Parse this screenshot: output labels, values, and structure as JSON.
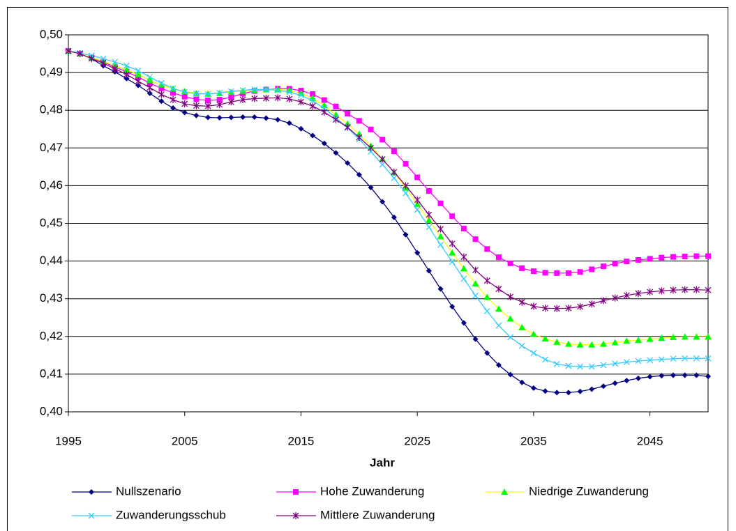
{
  "chart_data": {
    "type": "line",
    "x_label": "Jahr",
    "x": [
      1995,
      1996,
      1997,
      1998,
      1999,
      2000,
      2001,
      2002,
      2003,
      2004,
      2005,
      2006,
      2007,
      2008,
      2009,
      2010,
      2011,
      2012,
      2013,
      2014,
      2015,
      2016,
      2017,
      2018,
      2019,
      2020,
      2021,
      2022,
      2023,
      2024,
      2025,
      2026,
      2027,
      2028,
      2029,
      2030,
      2031,
      2032,
      2033,
      2034,
      2035,
      2036,
      2037,
      2038,
      2039,
      2040,
      2041,
      2042,
      2043,
      2044,
      2045,
      2046,
      2047,
      2048,
      2049,
      2050
    ],
    "xlim": [
      1995,
      2050
    ],
    "xticks": [
      1995,
      2005,
      2015,
      2025,
      2035,
      2045
    ],
    "ylim": [
      0.4,
      0.5
    ],
    "yticks": [
      {
        "value": 0.4,
        "label": "0,40"
      },
      {
        "value": 0.41,
        "label": "0,41"
      },
      {
        "value": 0.42,
        "label": "0,42"
      },
      {
        "value": 0.43,
        "label": "0,43"
      },
      {
        "value": 0.44,
        "label": "0,44"
      },
      {
        "value": 0.45,
        "label": "0,45"
      },
      {
        "value": 0.46,
        "label": "0,46"
      },
      {
        "value": 0.47,
        "label": "0,47"
      },
      {
        "value": 0.48,
        "label": "0,48"
      },
      {
        "value": 0.49,
        "label": "0,49"
      },
      {
        "value": 0.5,
        "label": "0,50"
      }
    ],
    "grid": true,
    "legend": "bottom",
    "series": [
      {
        "name": "Nullszenario",
        "color": "#000080",
        "marker": "diamond",
        "marker_color": "#000080",
        "values": [
          0.4957,
          0.495,
          0.4937,
          0.4918,
          0.4902,
          0.4884,
          0.4866,
          0.4845,
          0.4824,
          0.4806,
          0.4794,
          0.4786,
          0.4781,
          0.478,
          0.4781,
          0.4782,
          0.4782,
          0.4779,
          0.4775,
          0.4766,
          0.4751,
          0.4733,
          0.4712,
          0.4687,
          0.466,
          0.4629,
          0.4595,
          0.4557,
          0.4516,
          0.447,
          0.4422,
          0.4374,
          0.4326,
          0.4279,
          0.4236,
          0.4193,
          0.4156,
          0.4124,
          0.4099,
          0.4078,
          0.4063,
          0.4055,
          0.4051,
          0.4051,
          0.4054,
          0.406,
          0.4068,
          0.4076,
          0.4083,
          0.4089,
          0.4093,
          0.4096,
          0.4097,
          0.4097,
          0.4097,
          0.4094
        ]
      },
      {
        "name": "Hohe Zuwanderung",
        "color": "#ff00ff",
        "marker": "square",
        "marker_color": "#ff00ff",
        "values": [
          0.4957,
          0.495,
          0.494,
          0.4928,
          0.4915,
          0.4902,
          0.4888,
          0.4872,
          0.4858,
          0.4846,
          0.4836,
          0.4829,
          0.4826,
          0.4828,
          0.4835,
          0.4844,
          0.4851,
          0.4855,
          0.4857,
          0.4857,
          0.4852,
          0.4843,
          0.4827,
          0.481,
          0.4791,
          0.4772,
          0.4749,
          0.4722,
          0.4691,
          0.4658,
          0.4622,
          0.4586,
          0.4553,
          0.4519,
          0.4486,
          0.4458,
          0.4432,
          0.441,
          0.4394,
          0.4381,
          0.4373,
          0.4369,
          0.4368,
          0.4368,
          0.4371,
          0.4378,
          0.4386,
          0.4393,
          0.4399,
          0.4403,
          0.4406,
          0.4409,
          0.4411,
          0.4412,
          0.4413,
          0.4413
        ]
      },
      {
        "name": "Niedrige Zuwanderung",
        "color": "#ffff00",
        "marker": "triangle",
        "marker_color": "#00ff00",
        "values": [
          0.4957,
          0.495,
          0.494,
          0.493,
          0.4918,
          0.4907,
          0.4895,
          0.488,
          0.4868,
          0.4857,
          0.485,
          0.4845,
          0.4843,
          0.4845,
          0.4848,
          0.4851,
          0.4853,
          0.4855,
          0.4855,
          0.4853,
          0.4845,
          0.4832,
          0.4813,
          0.4788,
          0.4764,
          0.4737,
          0.4705,
          0.4671,
          0.4635,
          0.4594,
          0.4551,
          0.4508,
          0.4465,
          0.4422,
          0.438,
          0.434,
          0.4304,
          0.4273,
          0.4247,
          0.4224,
          0.4206,
          0.4194,
          0.4185,
          0.418,
          0.4178,
          0.4178,
          0.418,
          0.4184,
          0.4188,
          0.419,
          0.4193,
          0.4196,
          0.4198,
          0.4199,
          0.4199,
          0.4199
        ]
      },
      {
        "name": "Zuwanderungsschub",
        "color": "#33ccff",
        "marker": "x",
        "marker_color": "#33ccff",
        "values": [
          0.4957,
          0.4952,
          0.4945,
          0.4937,
          0.4928,
          0.4918,
          0.4905,
          0.4888,
          0.4872,
          0.4858,
          0.4848,
          0.4844,
          0.4843,
          0.4846,
          0.485,
          0.4853,
          0.4855,
          0.4855,
          0.4853,
          0.4848,
          0.484,
          0.4825,
          0.4805,
          0.478,
          0.4753,
          0.4723,
          0.469,
          0.4656,
          0.462,
          0.458,
          0.4536,
          0.449,
          0.4443,
          0.4398,
          0.4353,
          0.4308,
          0.4267,
          0.4229,
          0.4198,
          0.4175,
          0.4156,
          0.4139,
          0.4127,
          0.4122,
          0.412,
          0.412,
          0.4124,
          0.4128,
          0.4132,
          0.4135,
          0.4137,
          0.4139,
          0.4141,
          0.4142,
          0.4142,
          0.4142
        ]
      },
      {
        "name": "Mittlere Zuwanderung",
        "color": "#800080",
        "marker": "asterisk",
        "marker_color": "#800080",
        "values": [
          0.4957,
          0.495,
          0.4937,
          0.4925,
          0.491,
          0.4895,
          0.4877,
          0.486,
          0.4842,
          0.4828,
          0.4817,
          0.4812,
          0.4811,
          0.4815,
          0.4822,
          0.4828,
          0.4831,
          0.4832,
          0.4833,
          0.483,
          0.4822,
          0.4811,
          0.4795,
          0.4775,
          0.4755,
          0.4728,
          0.47,
          0.467,
          0.4636,
          0.46,
          0.4562,
          0.4523,
          0.4485,
          0.4446,
          0.4411,
          0.4376,
          0.4348,
          0.4326,
          0.4305,
          0.4291,
          0.428,
          0.4275,
          0.4274,
          0.4275,
          0.4279,
          0.4286,
          0.4295,
          0.4302,
          0.4309,
          0.4314,
          0.4318,
          0.4321,
          0.4323,
          0.4324,
          0.4324,
          0.4323
        ]
      }
    ]
  }
}
